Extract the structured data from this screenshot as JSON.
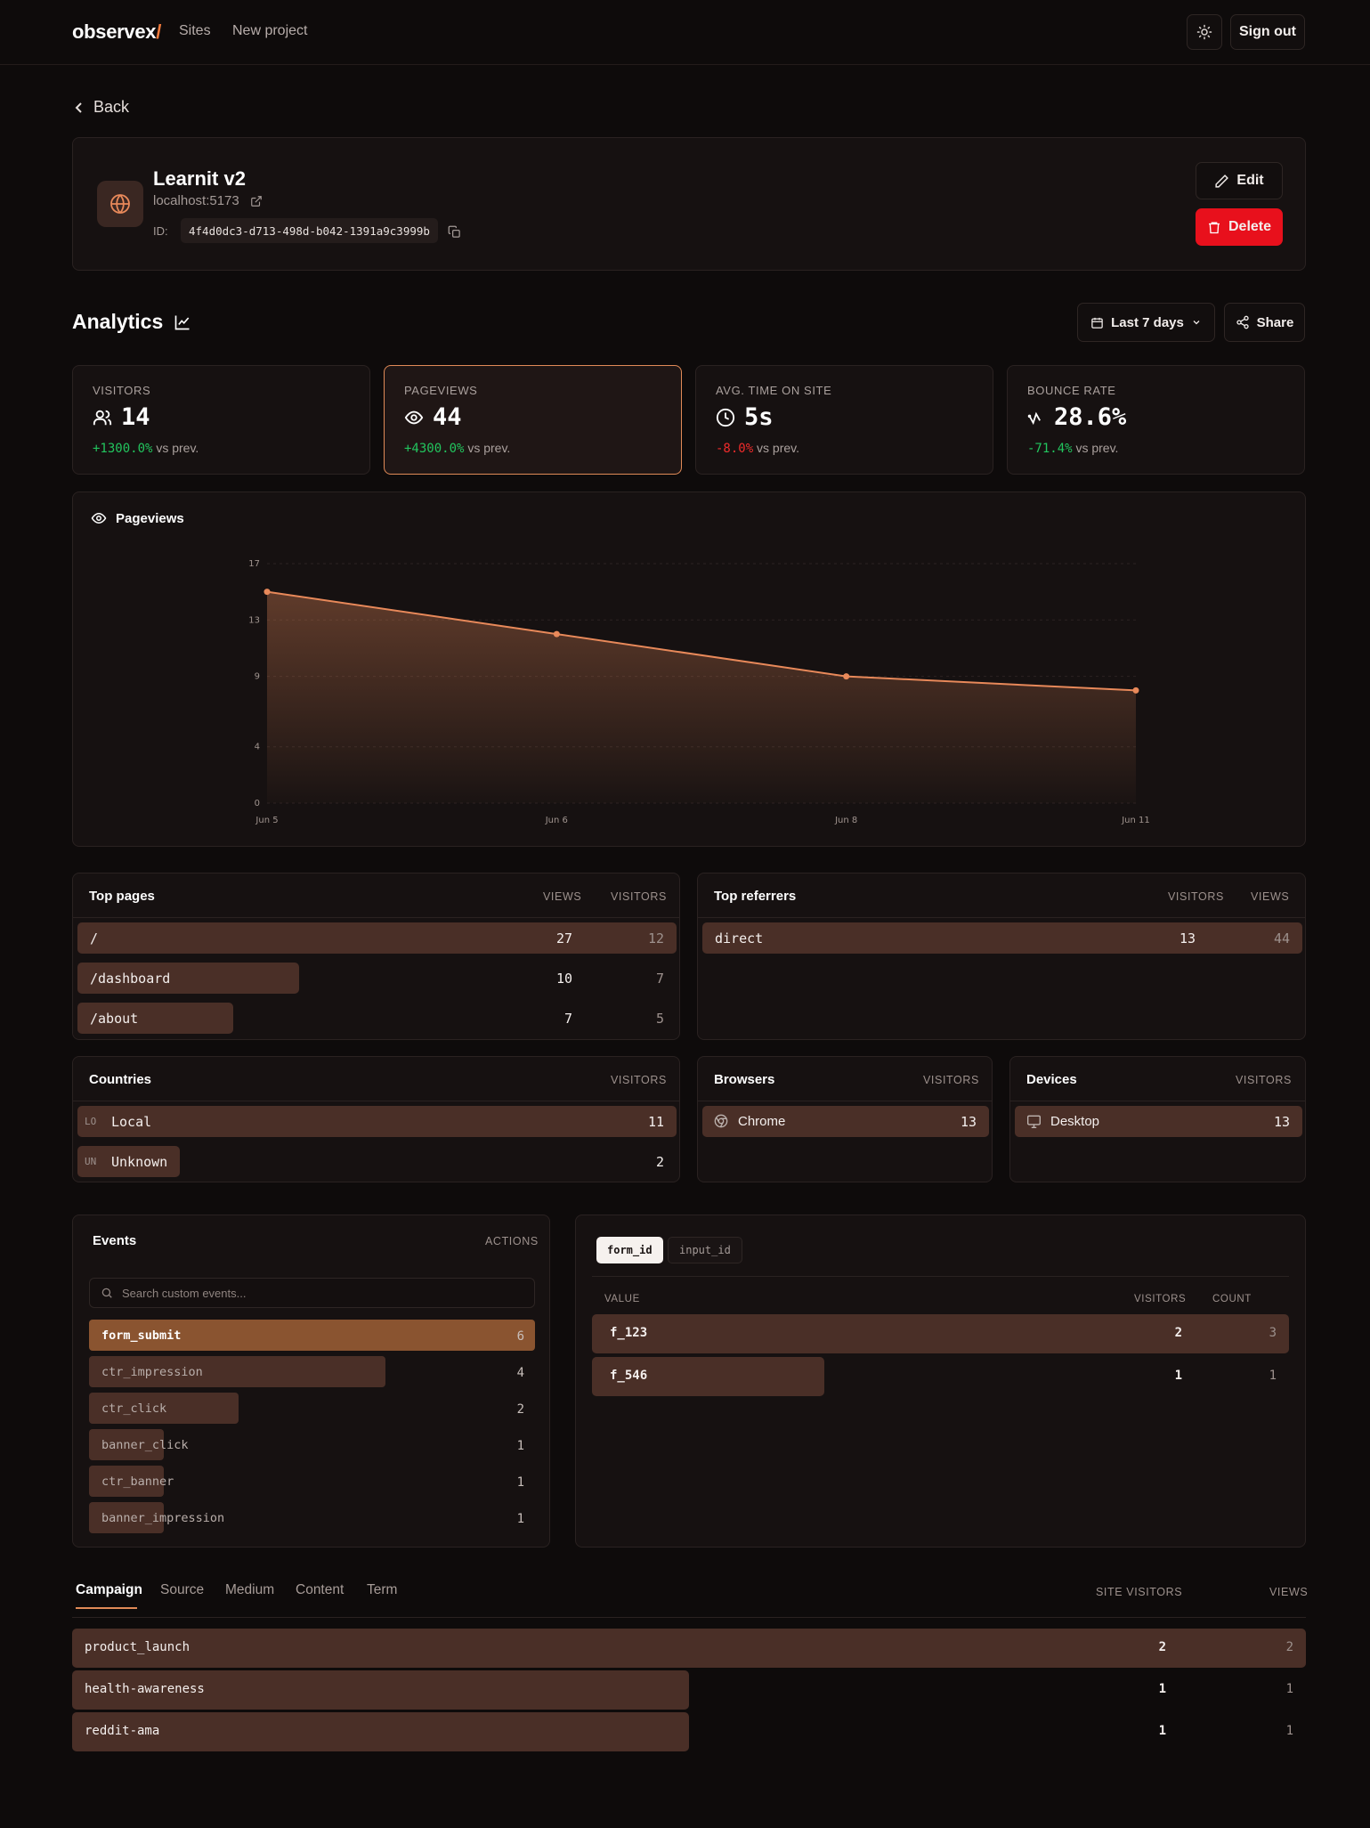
{
  "nav": {
    "logo": "observex",
    "logo_slash": "/",
    "links": [
      "Sites",
      "New project"
    ],
    "theme_icon": "sun-icon",
    "signout_label": "Sign out"
  },
  "back_label": "Back",
  "site": {
    "name": "Learnit v2",
    "host": "localhost:5173",
    "id_label": "ID:",
    "id": "4f4d0dc3-d713-498d-b042-1391a9c3999b",
    "edit_label": "Edit",
    "delete_label": "Delete"
  },
  "analytics": {
    "title": "Analytics",
    "range_label": "Last 7 days",
    "share_label": "Share"
  },
  "stats": [
    {
      "label": "VISITORS",
      "icon": "users-icon",
      "value": "14",
      "delta": "+1300.0%",
      "delta_suffix": "vs prev.",
      "trend": "up"
    },
    {
      "label": "PAGEVIEWS",
      "icon": "eye-icon",
      "value": "44",
      "delta": "+4300.0%",
      "delta_suffix": "vs prev.",
      "trend": "up"
    },
    {
      "label": "AVG. TIME ON SITE",
      "icon": "clock-icon",
      "value": "5s",
      "delta": "-8.0%",
      "delta_suffix": "vs prev.",
      "trend": "down"
    },
    {
      "label": "BOUNCE RATE",
      "icon": "bounce-icon",
      "value": "28.6%",
      "delta": "-71.4%",
      "delta_suffix": "vs prev.",
      "trend": "up"
    }
  ],
  "chart_data": {
    "type": "area",
    "title": "Pageviews",
    "x": [
      "Jun 5",
      "Jun 6",
      "Jun 8",
      "Jun 11"
    ],
    "values": [
      15,
      12,
      9,
      8
    ],
    "yticks": [
      "0",
      "4",
      "9",
      "13",
      "17"
    ],
    "ylim": [
      0,
      17
    ],
    "grid": true,
    "color": "#e8895a"
  },
  "top_pages": {
    "title": "Top pages",
    "col1": "VIEWS",
    "col2": "VISITORS",
    "rows": [
      {
        "label": "/",
        "views": "27",
        "visitors": "12",
        "share": 1.0
      },
      {
        "label": "/dashboard",
        "views": "10",
        "visitors": "7",
        "share": 0.37
      },
      {
        "label": "/about",
        "views": "7",
        "visitors": "5",
        "share": 0.26
      }
    ]
  },
  "top_referrers": {
    "title": "Top referrers",
    "col1": "VISITORS",
    "col2": "VIEWS",
    "rows": [
      {
        "label": "direct",
        "visitors": "13",
        "views": "44",
        "share": 1.0
      }
    ]
  },
  "countries": {
    "title": "Countries",
    "col": "VISITORS",
    "rows": [
      {
        "code": "LO",
        "label": "Local",
        "value": "11",
        "share": 1.0
      },
      {
        "code": "UN",
        "label": "Unknown",
        "value": "2",
        "share": 0.17
      }
    ]
  },
  "browsers": {
    "title": "Browsers",
    "col": "VISITORS",
    "rows": [
      {
        "label": "Chrome",
        "icon": "chrome-icon",
        "value": "13",
        "share": 1.0
      }
    ]
  },
  "devices": {
    "title": "Devices",
    "col": "VISITORS",
    "rows": [
      {
        "label": "Desktop",
        "icon": "monitor-icon",
        "value": "13",
        "share": 1.0
      }
    ]
  },
  "events": {
    "title": "Events",
    "col": "ACTIONS",
    "search_placeholder": "Search custom events...",
    "rows": [
      {
        "label": "form_submit",
        "count": "6",
        "share": 1.0,
        "active": true
      },
      {
        "label": "ctr_impression",
        "count": "4",
        "share": 0.665,
        "active": false
      },
      {
        "label": "ctr_click",
        "count": "2",
        "share": 0.335,
        "active": false
      },
      {
        "label": "banner_click",
        "count": "1",
        "share": 0.168,
        "active": false
      },
      {
        "label": "ctr_banner",
        "count": "1",
        "share": 0.168,
        "active": false
      },
      {
        "label": "banner_impression",
        "count": "1",
        "share": 0.168,
        "active": false
      }
    ]
  },
  "event_props": {
    "chips": [
      "form_id",
      "input_id"
    ],
    "col_value": "VALUE",
    "col_visitors": "VISITORS",
    "col_count": "COUNT",
    "rows": [
      {
        "label": "f_123",
        "visitors": "2",
        "count": "3",
        "share": 1.0
      },
      {
        "label": "f_546",
        "visitors": "1",
        "count": "1",
        "share": 0.333
      }
    ]
  },
  "campaigns": {
    "tabs": [
      "Campaign",
      "Source",
      "Medium",
      "Content",
      "Term"
    ],
    "col1": "SITE VISITORS",
    "col2": "VIEWS",
    "rows": [
      {
        "label": "product_launch",
        "visitors": "2",
        "views": "2",
        "share": 1.0
      },
      {
        "label": "health-awareness",
        "visitors": "1",
        "views": "1",
        "share": 0.5
      },
      {
        "label": "reddit-ama",
        "visitors": "1",
        "views": "1",
        "share": 0.5
      }
    ]
  }
}
